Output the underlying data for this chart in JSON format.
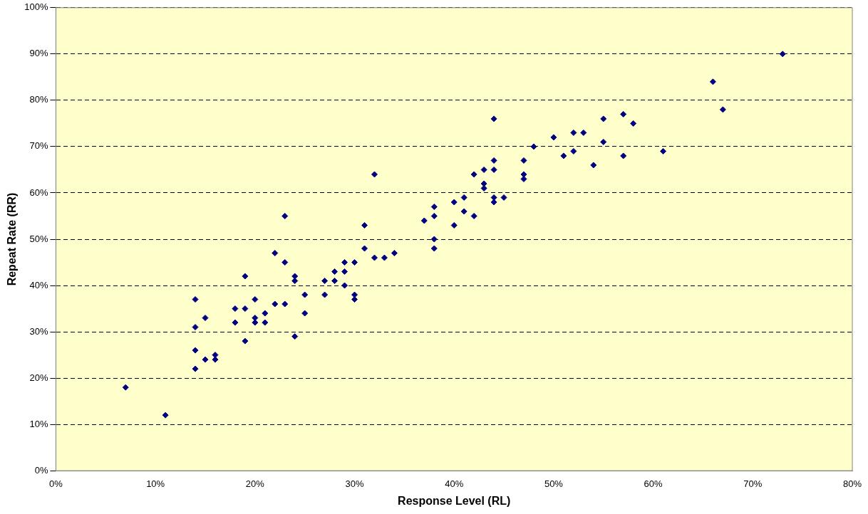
{
  "chart_data": {
    "type": "scatter",
    "xlabel": "Response Level (RL)",
    "ylabel": "Repeat Rate (RR)",
    "x": [
      7,
      11,
      14,
      14,
      14,
      14,
      15,
      15,
      16,
      16,
      18,
      18,
      19,
      19,
      19,
      20,
      20,
      20,
      21,
      21,
      22,
      22,
      23,
      23,
      23,
      24,
      24,
      24,
      25,
      25,
      27,
      27,
      28,
      28,
      29,
      29,
      29,
      30,
      30,
      30,
      31,
      31,
      32,
      32,
      33,
      34,
      37,
      38,
      38,
      38,
      38,
      40,
      40,
      41,
      41,
      42,
      42,
      43,
      43,
      43,
      44,
      44,
      44,
      44,
      44,
      45,
      47,
      47,
      47,
      48,
      50,
      51,
      52,
      52,
      53,
      54,
      55,
      55,
      57,
      57,
      58,
      61,
      66,
      67,
      73
    ],
    "series": [
      {
        "color": "#000080",
        "values": [
          18,
          12,
          37,
          31,
          26,
          22,
          33,
          24,
          25,
          24,
          35,
          32,
          42,
          35,
          28,
          37,
          33,
          32,
          34,
          32,
          47,
          36,
          55,
          45,
          36,
          42,
          41,
          29,
          38,
          34,
          41,
          38,
          43,
          41,
          45,
          43,
          40,
          45,
          38,
          37,
          53,
          48,
          64,
          46,
          46,
          47,
          54,
          57,
          55,
          50,
          48,
          58,
          53,
          59,
          56,
          64,
          55,
          65,
          62,
          61,
          76,
          67,
          65,
          59,
          58,
          59,
          67,
          64,
          63,
          70,
          72,
          68,
          73,
          69,
          73,
          66,
          76,
          71,
          77,
          68,
          75,
          69,
          84,
          78,
          90
        ]
      }
    ],
    "xlim": [
      0,
      80
    ],
    "xticks": [
      {
        "value": 0,
        "label": "0%"
      },
      {
        "value": 10,
        "label": "10%"
      },
      {
        "value": 20,
        "label": "20%"
      },
      {
        "value": 30,
        "label": "30%"
      },
      {
        "value": 40,
        "label": "40%"
      },
      {
        "value": 50,
        "label": "50%"
      },
      {
        "value": 60,
        "label": "60%"
      },
      {
        "value": 70,
        "label": "70%"
      },
      {
        "value": 80,
        "label": "80%"
      }
    ],
    "ylim": [
      0,
      100
    ],
    "yticks": [
      {
        "value": 0,
        "label": "0%"
      },
      {
        "value": 10,
        "label": "10%"
      },
      {
        "value": 20,
        "label": "20%"
      },
      {
        "value": 30,
        "label": "30%"
      },
      {
        "value": 40,
        "label": "40%"
      },
      {
        "value": 50,
        "label": "50%"
      },
      {
        "value": 60,
        "label": "60%"
      },
      {
        "value": 70,
        "label": "70%"
      },
      {
        "value": 80,
        "label": "80%"
      },
      {
        "value": 90,
        "label": "90%"
      },
      {
        "value": 100,
        "label": "100%"
      }
    ],
    "grid": "y",
    "marker": "diamond",
    "line_style": "dashed",
    "legend": false
  }
}
